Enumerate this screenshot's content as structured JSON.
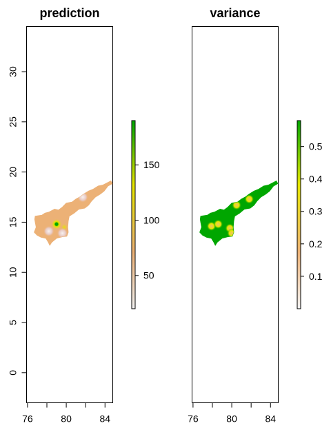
{
  "chart_data": [
    {
      "type": "heatmap",
      "title": "prediction",
      "xlabel": "",
      "ylabel": "",
      "xlim": [
        75.9,
        84.8
      ],
      "ylim": [
        -3,
        34.5
      ],
      "x_ticks": [
        76,
        80,
        84
      ],
      "y_ticks": [
        0,
        5,
        10,
        15,
        20,
        25,
        30
      ],
      "y_tick_labels": [
        "0",
        "5",
        "10",
        "15",
        "20",
        "25",
        "30"
      ],
      "legend": {
        "type": "colorbar",
        "range": [
          20,
          190
        ],
        "ticks": [
          50,
          100,
          150
        ],
        "colors": [
          "#f2f2f2",
          "#ecb176",
          "#e6e600",
          "#00a600"
        ]
      },
      "region_fill_value": 60,
      "hotspots": [
        {
          "lon": 79.0,
          "lat": 14.8,
          "value": 185
        },
        {
          "lon": 79.8,
          "lat": 14.5,
          "value": 110
        },
        {
          "lon": 78.2,
          "lat": 14.1,
          "value": 25
        },
        {
          "lon": 79.6,
          "lat": 13.9,
          "value": 40
        },
        {
          "lon": 81.7,
          "lat": 17.5,
          "value": 45
        }
      ]
    },
    {
      "type": "heatmap",
      "title": "variance",
      "xlabel": "",
      "ylabel": "",
      "xlim": [
        75.9,
        84.8
      ],
      "ylim": [
        -3,
        34.5
      ],
      "x_ticks": [
        76,
        80,
        84
      ],
      "legend": {
        "type": "colorbar",
        "range": [
          0.0,
          0.58
        ],
        "ticks": [
          0.1,
          0.2,
          0.3,
          0.4,
          0.5
        ],
        "colors": [
          "#f2f2f2",
          "#ecb176",
          "#e6e600",
          "#00a600"
        ]
      },
      "region_fill_value": 0.55,
      "hotspots": [
        {
          "lon": 77.9,
          "lat": 14.6,
          "value": 0.28
        },
        {
          "lon": 78.6,
          "lat": 14.8,
          "value": 0.25
        },
        {
          "lon": 79.8,
          "lat": 14.4,
          "value": 0.3
        },
        {
          "lon": 80.0,
          "lat": 13.9,
          "value": 0.22
        },
        {
          "lon": 80.5,
          "lat": 16.7,
          "value": 0.25
        },
        {
          "lon": 81.8,
          "lat": 17.3,
          "value": 0.3
        }
      ]
    }
  ]
}
